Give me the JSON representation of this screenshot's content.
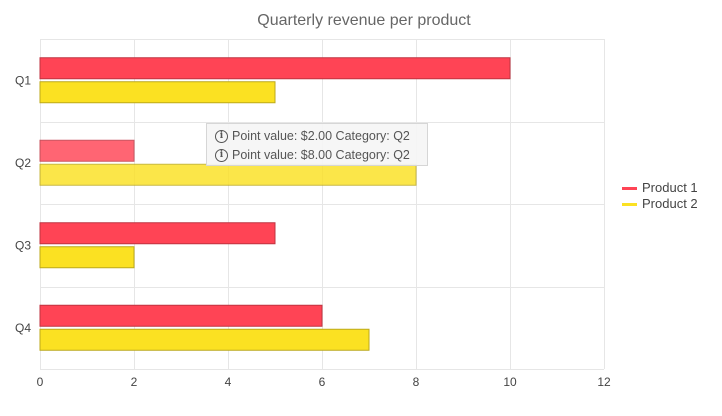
{
  "chart_data": {
    "type": "bar",
    "orientation": "horizontal",
    "title": "Quarterly revenue per product",
    "categories": [
      "Q1",
      "Q2",
      "Q3",
      "Q4"
    ],
    "series": [
      {
        "name": "Product 1",
        "color": "#ff4455",
        "values": [
          10,
          2,
          5,
          6
        ]
      },
      {
        "name": "Product 2",
        "color": "#fbe122",
        "values": [
          5,
          8,
          2,
          7
        ]
      }
    ],
    "xlim": [
      0,
      12
    ],
    "x_ticks": [
      0,
      2,
      4,
      6,
      8,
      10,
      12
    ],
    "grid": true,
    "legend_position": "right",
    "highlighted_category": "Q2",
    "tooltip": [
      "Point value: $2.00 Category: Q2",
      "Point value: $8.00 Category: Q2"
    ],
    "info_icon": "info-icon",
    "colors": {
      "grid": "#e6e6e6",
      "axis_text": "#444444",
      "title_text": "#666666"
    }
  }
}
